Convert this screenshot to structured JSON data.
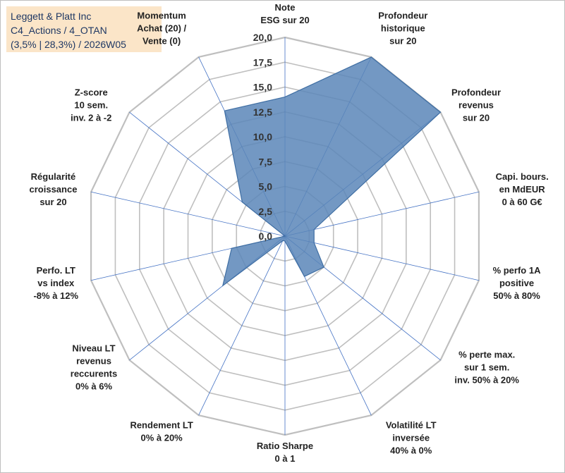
{
  "title": {
    "line1": "Leggett & Platt Inc",
    "line2": "C4_Actions / 4_OTAN",
    "line3": "(3,5% | 28,3%) / 2026W05"
  },
  "chart_data": {
    "type": "radar",
    "rmin": 0,
    "rmax": 20,
    "ticks": [
      "0,0",
      "2,5",
      "5,0",
      "7,5",
      "10,0",
      "12,5",
      "15,0",
      "17,5",
      "20,0"
    ],
    "axes": [
      [
        "Note",
        "ESG sur 20"
      ],
      [
        "Profondeur",
        "historique",
        "sur 20"
      ],
      [
        "Profondeur",
        "revenus",
        "sur 20"
      ],
      [
        "Capi. bours.",
        "en MdEUR",
        "0 à 60 G€"
      ],
      [
        "% perfo 1A",
        "positive",
        "50% à 80%"
      ],
      [
        "% perte max.",
        "sur 1 sem.",
        "inv. 50% à 20%"
      ],
      [
        "Volatilité LT",
        "inversée",
        "40% à 0%"
      ],
      [
        "Ratio Sharpe",
        "0 à 1"
      ],
      [
        "Rendement LT",
        "0% à 20%"
      ],
      [
        "Niveau LT",
        "revenus",
        "reccurents",
        "0% à 6%"
      ],
      [
        "Perfo. LT",
        "vs index",
        "-8% à 12%"
      ],
      [
        "Régularité",
        "croissance",
        "sur 20"
      ],
      [
        "Z-score",
        "10 sem.",
        "inv. 2 à -2"
      ],
      [
        "Momentum",
        "Achat (20) /",
        "Vente (0)"
      ]
    ],
    "series": [
      {
        "name": "Leggett & Platt Inc",
        "values": [
          14,
          20,
          20,
          3,
          3,
          5,
          4.5,
          0.5,
          0.5,
          8,
          5.5,
          0,
          5.5,
          14
        ]
      }
    ],
    "colors": {
      "fill": "#5b86b8",
      "stroke": "#3f6ea3",
      "grid": "#bfbfbf",
      "spoke": "#4472c4"
    }
  }
}
